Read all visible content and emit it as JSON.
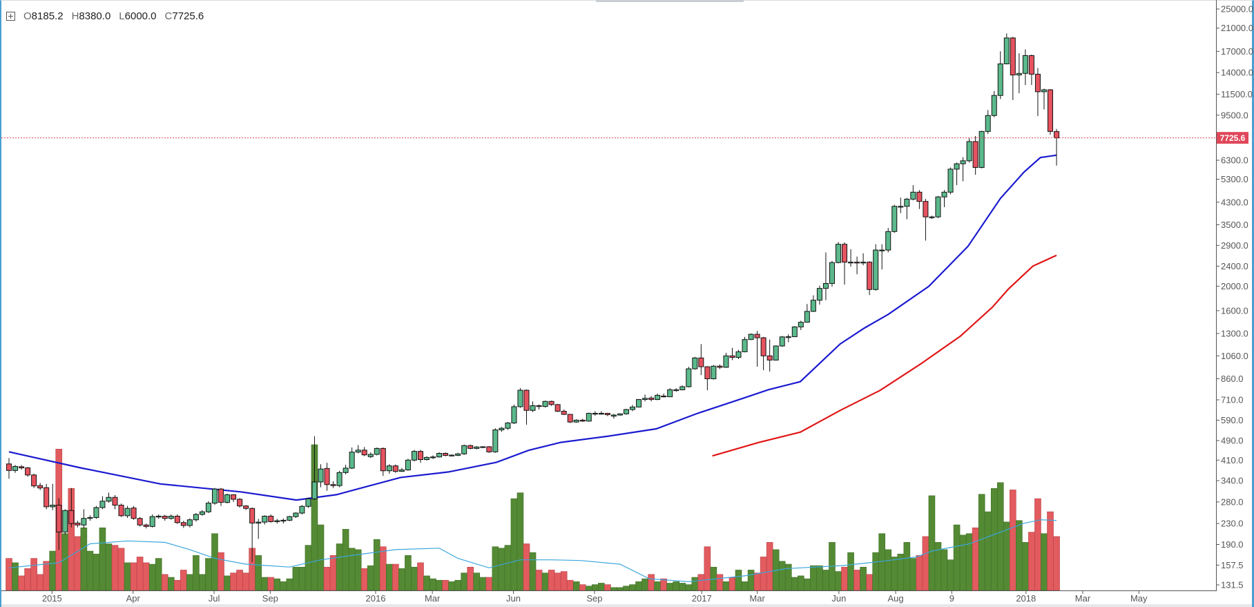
{
  "legend": {
    "o_label": "O",
    "o": "8185.2",
    "h_label": "H",
    "h": "8380.0",
    "l_label": "L",
    "l": "6000.0",
    "c_label": "C",
    "c": "7725.6"
  },
  "colors": {
    "up": "#5bb98b",
    "down": "#e5535f",
    "vol_up": "#548a34",
    "vol_down": "#e25b5e",
    "ma_fast": "#1a1ad0",
    "ma_slow": "#e01515",
    "vol_ma": "#3aa6dc",
    "last_price": "#e0475a"
  },
  "chart_data": {
    "type": "candlestick",
    "scale": "log",
    "interval": "weekly",
    "last_price": "7725.6",
    "y_ticks": [
      "25000.0",
      "21000.0",
      "17000.0",
      "14000.0",
      "11500.0",
      "9500.0",
      "6300.0",
      "5300.0",
      "4300.0",
      "3500.0",
      "2900.0",
      "2400.0",
      "2000.0",
      "1600.0",
      "1300.0",
      "1060.0",
      "860.0",
      "710.0",
      "590.0",
      "490.0",
      "410.0",
      "340.0",
      "280.0",
      "230.0",
      "190.0",
      "157.5",
      "131.5"
    ],
    "ylim": [
      131.5,
      25000
    ],
    "x_ticks": [
      {
        "label": "2015",
        "week": 6.9
      },
      {
        "label": "Apr",
        "week": 19.9
      },
      {
        "label": "Jul",
        "week": 32.9
      },
      {
        "label": "Sep",
        "week": 41.9
      },
      {
        "label": "2016",
        "week": 58.8
      },
      {
        "label": "Mar",
        "week": 67.9
      },
      {
        "label": "Jun",
        "week": 80.9
      },
      {
        "label": "Sep",
        "week": 93.9
      },
      {
        "label": "2017",
        "week": 111.1
      },
      {
        "label": "Mar",
        "week": 120.0
      },
      {
        "label": "Jun",
        "week": 133.1
      },
      {
        "label": "Aug",
        "week": 142.2
      },
      {
        "label": "9",
        "week": 151.2
      },
      {
        "label": "2018",
        "week": 163.1
      },
      {
        "label": "Mar",
        "week": 172.2
      },
      {
        "label": "May",
        "week": 181.2
      }
    ],
    "candles_ohlc": [
      [
        396,
        418,
        346,
        373
      ],
      [
        373,
        392,
        365,
        387
      ],
      [
        386,
        392,
        376,
        382
      ],
      [
        382,
        385,
        352,
        358
      ],
      [
        358,
        362,
        318,
        324
      ],
      [
        325,
        333,
        312,
        318
      ],
      [
        319,
        330,
        262,
        268
      ],
      [
        268,
        330,
        260,
        272
      ],
      [
        272,
        290,
        181,
        213
      ],
      [
        213,
        262,
        208,
        259
      ],
      [
        259,
        318,
        222,
        230
      ],
      [
        231,
        236,
        222,
        227
      ],
      [
        227,
        262,
        220,
        241
      ],
      [
        241,
        248,
        236,
        243
      ],
      [
        243,
        270,
        240,
        266
      ],
      [
        266,
        295,
        262,
        282
      ],
      [
        282,
        305,
        278,
        292
      ],
      [
        292,
        298,
        262,
        272
      ],
      [
        272,
        276,
        244,
        247
      ],
      [
        247,
        270,
        242,
        264
      ],
      [
        265,
        270,
        238,
        241
      ],
      [
        241,
        244,
        224,
        227
      ],
      [
        227,
        230,
        220,
        224
      ],
      [
        224,
        250,
        222,
        245
      ],
      [
        245,
        250,
        240,
        246
      ],
      [
        246,
        249,
        236,
        241
      ],
      [
        241,
        250,
        238,
        246
      ],
      [
        246,
        250,
        229,
        232
      ],
      [
        232,
        236,
        221,
        226
      ],
      [
        226,
        241,
        222,
        238
      ],
      [
        238,
        253,
        234,
        250
      ],
      [
        250,
        260,
        247,
        256
      ],
      [
        256,
        282,
        253,
        277
      ],
      [
        277,
        318,
        273,
        315
      ],
      [
        315,
        318,
        270,
        279
      ],
      [
        279,
        302,
        276,
        299
      ],
      [
        299,
        300,
        280,
        287
      ],
      [
        287,
        290,
        266,
        270
      ],
      [
        270,
        272,
        260,
        264
      ],
      [
        264,
        266,
        162,
        231
      ],
      [
        231,
        240,
        200,
        233
      ],
      [
        233,
        248,
        228,
        246
      ],
      [
        246,
        250,
        232,
        234
      ],
      [
        234,
        240,
        230,
        236
      ],
      [
        236,
        241,
        230,
        237
      ],
      [
        237,
        247,
        235,
        245
      ],
      [
        245,
        255,
        242,
        253
      ],
      [
        253,
        272,
        250,
        269
      ],
      [
        269,
        291,
        265,
        288
      ],
      [
        288,
        510,
        285,
        336
      ],
      [
        336,
        395,
        320,
        378
      ],
      [
        380,
        400,
        310,
        328
      ],
      [
        328,
        338,
        318,
        325
      ],
      [
        325,
        372,
        320,
        366
      ],
      [
        366,
        393,
        360,
        381
      ],
      [
        381,
        460,
        378,
        441
      ],
      [
        441,
        470,
        436,
        449
      ],
      [
        449,
        462,
        425,
        430
      ],
      [
        423,
        440,
        418,
        432
      ],
      [
        432,
        460,
        428,
        456
      ],
      [
        456,
        460,
        355,
        372
      ],
      [
        372,
        395,
        362,
        389
      ],
      [
        389,
        394,
        365,
        370
      ],
      [
        370,
        382,
        368,
        375
      ],
      [
        375,
        415,
        372,
        410
      ],
      [
        410,
        450,
        405,
        444
      ],
      [
        444,
        450,
        400,
        412
      ],
      [
        412,
        425,
        408,
        420
      ],
      [
        419,
        428,
        414,
        422
      ],
      [
        422,
        440,
        420,
        436
      ],
      [
        436,
        440,
        424,
        428
      ],
      [
        428,
        432,
        424,
        429
      ],
      [
        428,
        438,
        425,
        434
      ],
      [
        434,
        472,
        430,
        468
      ],
      [
        468,
        472,
        452,
        456
      ],
      [
        456,
        466,
        452,
        462
      ],
      [
        462,
        466,
        458,
        463
      ],
      [
        463,
        466,
        438,
        442
      ],
      [
        442,
        548,
        438,
        540
      ],
      [
        540,
        555,
        530,
        548
      ],
      [
        548,
        580,
        540,
        575
      ],
      [
        575,
        680,
        570,
        667
      ],
      [
        667,
        790,
        660,
        775
      ],
      [
        775,
        780,
        566,
        645
      ],
      [
        645,
        700,
        635,
        673
      ],
      [
        673,
        680,
        650,
        670
      ],
      [
        668,
        705,
        662,
        700
      ],
      [
        700,
        705,
        672,
        680
      ],
      [
        680,
        684,
        635,
        640
      ],
      [
        640,
        650,
        618,
        622
      ],
      [
        622,
        624,
        575,
        580
      ],
      [
        580,
        595,
        576,
        590
      ],
      [
        590,
        598,
        580,
        585
      ],
      [
        585,
        632,
        582,
        628
      ],
      [
        628,
        640,
        615,
        628
      ],
      [
        628,
        640,
        620,
        628
      ],
      [
        628,
        631,
        612,
        620
      ],
      [
        612,
        625,
        598,
        618
      ],
      [
        618,
        628,
        615,
        625
      ],
      [
        625,
        654,
        620,
        650
      ],
      [
        650,
        678,
        640,
        665
      ],
      [
        665,
        716,
        662,
        712
      ],
      [
        712,
        745,
        700,
        720
      ],
      [
        722,
        735,
        700,
        712
      ],
      [
        712,
        752,
        708,
        740
      ],
      [
        735,
        752,
        726,
        730
      ],
      [
        730,
        790,
        728,
        778
      ],
      [
        778,
        790,
        765,
        778
      ],
      [
        778,
        810,
        774,
        800
      ],
      [
        800,
        960,
        795,
        942
      ],
      [
        942,
        1050,
        935,
        1040
      ],
      [
        1040,
        1180,
        890,
        960
      ],
      [
        960,
        965,
        775,
        860
      ],
      [
        860,
        975,
        855,
        965
      ],
      [
        965,
        980,
        940,
        955
      ],
      [
        955,
        1090,
        950,
        1060
      ],
      [
        1060,
        1140,
        1020,
        1045
      ],
      [
        1045,
        1120,
        1030,
        1100
      ],
      [
        1100,
        1260,
        1095,
        1230
      ],
      [
        1230,
        1300,
        1225,
        1290
      ],
      [
        1290,
        1330,
        960,
        1250
      ],
      [
        1250,
        1260,
        930,
        1060
      ],
      [
        1060,
        1230,
        919,
        1020
      ],
      [
        1020,
        1165,
        1015,
        1160
      ],
      [
        1160,
        1270,
        1150,
        1260
      ],
      [
        1260,
        1290,
        1200,
        1262
      ],
      [
        1262,
        1390,
        1258,
        1380
      ],
      [
        1380,
        1460,
        1340,
        1440
      ],
      [
        1440,
        1700,
        1435,
        1590
      ],
      [
        1590,
        1840,
        1580,
        1760
      ],
      [
        1760,
        2010,
        1690,
        1960
      ],
      [
        1960,
        2720,
        1760,
        2050
      ],
      [
        2050,
        2520,
        1990,
        2480
      ],
      [
        2480,
        2990,
        2460,
        2930
      ],
      [
        2930,
        2980,
        2030,
        2490
      ],
      [
        2490,
        2800,
        2390,
        2490
      ],
      [
        2490,
        2620,
        2230,
        2470
      ],
      [
        2470,
        2700,
        2420,
        2490
      ],
      [
        2490,
        2510,
        1845,
        1940
      ],
      [
        1940,
        2930,
        1920,
        2780
      ],
      [
        2780,
        2930,
        2330,
        2780
      ],
      [
        2780,
        3400,
        2720,
        3290
      ],
      [
        3290,
        4200,
        3250,
        4140
      ],
      [
        4140,
        4480,
        3890,
        4140
      ],
      [
        4140,
        4470,
        3680,
        4420
      ],
      [
        4420,
        5020,
        4370,
        4710
      ],
      [
        4710,
        4800,
        4040,
        4330
      ],
      [
        4330,
        4430,
        3030,
        3760
      ],
      [
        3760,
        3800,
        3690,
        3760
      ],
      [
        3760,
        4550,
        3720,
        4510
      ],
      [
        4510,
        4800,
        4110,
        4710
      ],
      [
        4710,
        5900,
        4620,
        5810
      ],
      [
        5810,
        6170,
        5020,
        6100
      ],
      [
        6100,
        6480,
        5200,
        6270
      ],
      [
        6270,
        7700,
        6170,
        7470
      ],
      [
        7470,
        7860,
        5520,
        5900
      ],
      [
        5900,
        8240,
        5850,
        8190
      ],
      [
        8190,
        9950,
        8010,
        9470
      ],
      [
        9470,
        11840,
        9320,
        11370
      ],
      [
        11370,
        17000,
        11000,
        15160
      ],
      [
        15160,
        20000,
        15100,
        19200
      ],
      [
        19200,
        19400,
        10900,
        13700
      ],
      [
        13700,
        16700,
        11600,
        13900
      ],
      [
        13900,
        17300,
        12500,
        16350
      ],
      [
        16350,
        16500,
        12500,
        13800
      ],
      [
        13800,
        14600,
        9420,
        11760
      ],
      [
        11760,
        12100,
        10010,
        11970
      ],
      [
        11970,
        12050,
        7950,
        8190
      ],
      [
        8185.2,
        8380,
        6000,
        7725.6
      ]
    ],
    "volume_relative": [
      22,
      19,
      10,
      15,
      22,
      11,
      20,
      27,
      97,
      39,
      70,
      37,
      43,
      27,
      25,
      43,
      32,
      31,
      29,
      19,
      19,
      23,
      19,
      18,
      22,
      11,
      9,
      7,
      14,
      11,
      24,
      11,
      22,
      39,
      26,
      10,
      12,
      14,
      12,
      29,
      24,
      9,
      9,
      8,
      6,
      8,
      16,
      16,
      31,
      100,
      45,
      16,
      24,
      32,
      42,
      29,
      28,
      15,
      17,
      35,
      30,
      18,
      18,
      15,
      24,
      16,
      19,
      10,
      8,
      7,
      7,
      6,
      7,
      12,
      16,
      12,
      9,
      9,
      30,
      29,
      31,
      63,
      67,
      32,
      26,
      14,
      12,
      14,
      12,
      13,
      7,
      6,
      4,
      3,
      4,
      5,
      4,
      2,
      2,
      3,
      4,
      6,
      8,
      11,
      6,
      8,
      5,
      6,
      5,
      4,
      9,
      11,
      30,
      16,
      11,
      6,
      9,
      14,
      6,
      14,
      12,
      23,
      33,
      28,
      20,
      18,
      9,
      10,
      8,
      17,
      17,
      14,
      33,
      13,
      16,
      26,
      14,
      16,
      11,
      26,
      39,
      28,
      23,
      25,
      33,
      22,
      24,
      37,
      65,
      33,
      28,
      21,
      45,
      38,
      39,
      43,
      66,
      54,
      70,
      74,
      47,
      69,
      48,
      33,
      40,
      63,
      39,
      54,
      37
    ],
    "ma_fast": [
      [
        0,
        442
      ],
      [
        11.5,
        382
      ],
      [
        24.3,
        330
      ],
      [
        37.2,
        307
      ],
      [
        46.1,
        285
      ],
      [
        52.5,
        299
      ],
      [
        62.8,
        350
      ],
      [
        70.5,
        368
      ],
      [
        78.2,
        402
      ],
      [
        83.3,
        448
      ],
      [
        88.5,
        482
      ],
      [
        96.1,
        510
      ],
      [
        103.8,
        545
      ],
      [
        110.3,
        626
      ],
      [
        118,
        724
      ],
      [
        121.8,
        779
      ],
      [
        126.9,
        838
      ],
      [
        133.3,
        1181
      ],
      [
        137.2,
        1366
      ],
      [
        141,
        1546
      ],
      [
        147.5,
        1995
      ],
      [
        153.8,
        2875
      ],
      [
        159,
        4449
      ],
      [
        162.8,
        5663
      ],
      [
        165.4,
        6455
      ],
      [
        168,
        6600
      ]
    ],
    "ma_slow": [
      [
        112.8,
        426
      ],
      [
        120.3,
        482
      ],
      [
        126.9,
        529
      ],
      [
        133.3,
        645
      ],
      [
        139.7,
        774
      ],
      [
        146.2,
        984
      ],
      [
        152.6,
        1270
      ],
      [
        157.7,
        1650
      ],
      [
        160.3,
        1950
      ],
      [
        164.2,
        2400
      ],
      [
        168,
        2650
      ]
    ],
    "volume_ma": [
      [
        0,
        15.5
      ],
      [
        8,
        19
      ],
      [
        13,
        32
      ],
      [
        19,
        34
      ],
      [
        25,
        33
      ],
      [
        29,
        28
      ],
      [
        33,
        22
      ],
      [
        38,
        18
      ],
      [
        45,
        16
      ],
      [
        50,
        21
      ],
      [
        55,
        24
      ],
      [
        62,
        28
      ],
      [
        69,
        29
      ],
      [
        72,
        22
      ],
      [
        77,
        15.5
      ],
      [
        82,
        21
      ],
      [
        87,
        21
      ],
      [
        91.7,
        20.5
      ],
      [
        98,
        18
      ],
      [
        102.7,
        8
      ],
      [
        109,
        6
      ],
      [
        118,
        10
      ],
      [
        124.7,
        15
      ],
      [
        133.6,
        17
      ],
      [
        140,
        20
      ],
      [
        145.6,
        23
      ],
      [
        148,
        27
      ],
      [
        154,
        32
      ],
      [
        158.4,
        39
      ],
      [
        162.7,
        46
      ],
      [
        165.5,
        48.5
      ],
      [
        168,
        48
      ]
    ]
  }
}
